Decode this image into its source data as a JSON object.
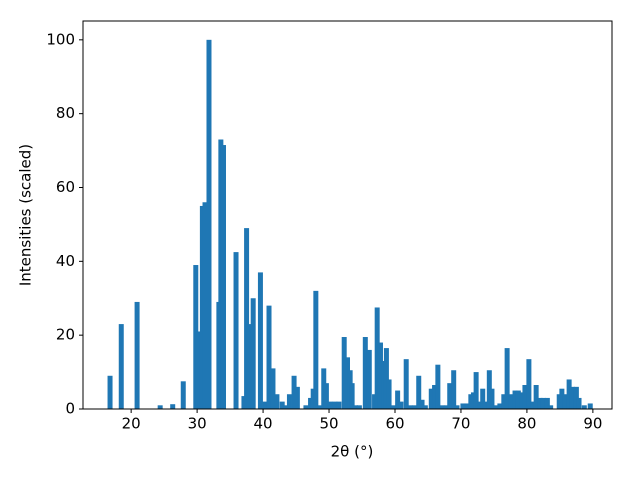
{
  "chart_data": {
    "type": "bar",
    "xlabel": "2θ (°)",
    "ylabel": "Intensities (scaled)",
    "color": "#1f77b4",
    "x": [
      16.8,
      18.5,
      20.9,
      24.4,
      26.3,
      27.9,
      29.8,
      30.2,
      30.8,
      31.2,
      31.8,
      33.3,
      33.6,
      34.0,
      35.9,
      37.1,
      37.5,
      37.8,
      38.5,
      39.6,
      40.3,
      40.9,
      41.5,
      42.1,
      42.9,
      43.5,
      44.0,
      44.7,
      45.2,
      46.5,
      47.2,
      47.6,
      48.0,
      48.6,
      49.2,
      49.6,
      50.2,
      50.9,
      51.5,
      52.3,
      52.8,
      53.2,
      53.5,
      54.0,
      54.6,
      55.5,
      56.1,
      56.9,
      57.3,
      57.8,
      58.3,
      58.7,
      59.1,
      59.7,
      60.4,
      60.9,
      61.7,
      62.3,
      63.0,
      63.6,
      64.1,
      64.6,
      65.5,
      66.0,
      66.5,
      67.1,
      67.8,
      68.3,
      68.9,
      69.4,
      70.3,
      70.9,
      71.5,
      71.9,
      72.3,
      72.9,
      73.3,
      73.7,
      74.3,
      74.7,
      75.3,
      75.9,
      76.5,
      77.0,
      77.6,
      78.2,
      78.7,
      79.3,
      79.7,
      80.3,
      80.9,
      81.4,
      82.0,
      82.5,
      83.1,
      83.6,
      84.9,
      85.3,
      85.8,
      86.4,
      86.9,
      87.5,
      87.9,
      88.7,
      89.6
    ],
    "values": [
      9,
      23,
      29,
      1,
      1.3,
      7.5,
      39,
      21,
      55,
      56,
      100,
      29,
      73,
      71.5,
      42.5,
      3.5,
      49,
      23,
      30,
      37,
      2,
      28,
      11,
      4,
      2,
      1,
      4,
      9,
      6,
      1,
      3,
      5.5,
      32,
      1,
      11,
      7,
      2,
      2,
      2,
      19.5,
      14,
      10.5,
      7,
      1,
      1,
      19.5,
      16,
      4,
      27.5,
      18,
      13,
      16.5,
      8,
      1,
      5,
      2,
      13.5,
      1,
      1,
      9,
      2.5,
      1,
      5.5,
      6.5,
      12,
      1,
      1,
      7,
      10.5,
      1,
      1.5,
      1.5,
      4,
      4.5,
      10,
      2,
      5.5,
      2,
      10.5,
      5.5,
      1,
      1.5,
      4,
      16.5,
      4,
      5,
      5,
      4.5,
      6.5,
      13.5,
      2,
      6.5,
      3,
      3,
      3,
      1,
      4,
      5.5,
      4,
      8,
      6,
      6,
      3,
      1,
      1.5
    ],
    "xlim": [
      12.7,
      92.9
    ],
    "ylim": [
      0,
      105.1
    ],
    "xticks": [
      20,
      30,
      40,
      50,
      60,
      70,
      80,
      90
    ],
    "yticks": [
      0,
      20,
      40,
      60,
      80,
      100
    ]
  }
}
